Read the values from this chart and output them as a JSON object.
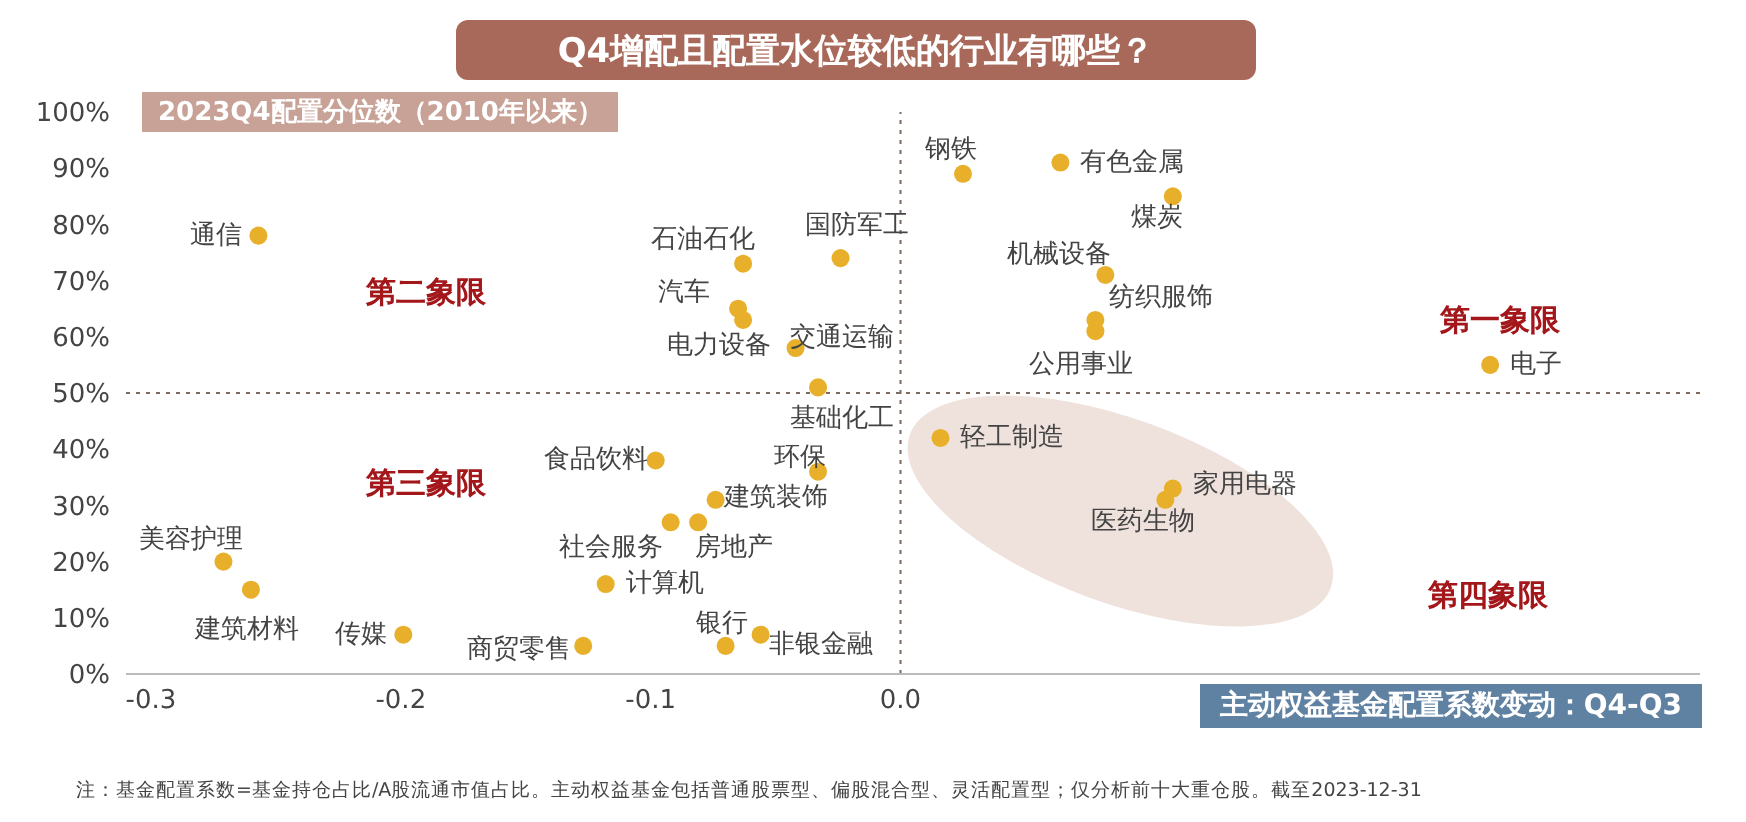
{
  "chart_data": {
    "type": "scatter",
    "title": "Q4增配且配置水位较低的行业有哪些？",
    "ylabel": "2023Q4配置分位数（2010年以来）",
    "xlabel": "主动权益基金配置系数变动：Q4-Q3",
    "x": [
      -0.257,
      -0.063,
      -0.024,
      -0.065,
      -0.063,
      -0.042,
      -0.033,
      0.025,
      0.064,
      0.109,
      0.082,
      0.078,
      0.078,
      0.236,
      0.016,
      0.109,
      0.106,
      -0.098,
      -0.033,
      -0.074,
      -0.092,
      -0.081,
      -0.118,
      -0.271,
      -0.26,
      -0.199,
      -0.127,
      -0.07,
      -0.056
    ],
    "series": [
      {
        "color": "#e8b02a",
        "values": [
          78,
          73,
          74,
          65,
          63,
          58,
          51,
          89,
          91,
          85,
          71,
          63,
          61,
          55,
          42,
          33,
          31,
          38,
          36,
          31,
          27,
          27,
          16,
          20,
          15,
          7,
          5,
          5,
          7
        ]
      }
    ],
    "xlim": [
      -0.31,
      0.32
    ],
    "xticks": [
      -0.3,
      -0.2,
      -0.1,
      {
        "value": 0,
        "label": "0.0"
      }
    ],
    "ylim": [
      0,
      100
    ],
    "yticks": [
      {
        "value": 0,
        "label": "0%"
      },
      {
        "value": 10,
        "label": "10%"
      },
      {
        "value": 20,
        "label": "20%"
      },
      {
        "value": 30,
        "label": "30%"
      },
      {
        "value": 40,
        "label": "40%"
      },
      {
        "value": 50,
        "label": "50%"
      },
      {
        "value": 60,
        "label": "60%"
      },
      {
        "value": 70,
        "label": "70%"
      },
      {
        "value": 80,
        "label": "80%"
      },
      {
        "value": 90,
        "label": "90%"
      },
      {
        "value": 100,
        "label": "100%"
      }
    ],
    "grid": false,
    "legend": false,
    "marker": "circle",
    "ref_lines": [
      {
        "axis": "x",
        "value": 0,
        "color": "#7f6a60",
        "line_style": "dotted"
      },
      {
        "axis": "y",
        "value": 50,
        "color": "#7f6a60",
        "line_style": "dotted"
      }
    ],
    "annotations": [
      {
        "text": "通信",
        "x": -0.257,
        "y": 78
      },
      {
        "text": "石油石化",
        "x": -0.063,
        "y": 73
      },
      {
        "text": "国防军工",
        "x": -0.024,
        "y": 74
      },
      {
        "text": "汽车",
        "x": -0.065,
        "y": 65
      },
      {
        "text": "电力设备",
        "x": -0.063,
        "y": 63
      },
      {
        "text": "交通运输",
        "x": -0.042,
        "y": 58
      },
      {
        "text": "基础化工",
        "x": -0.033,
        "y": 51
      },
      {
        "text": "钢铁",
        "x": 0.025,
        "y": 89
      },
      {
        "text": "有色金属",
        "x": 0.064,
        "y": 91
      },
      {
        "text": "煤炭",
        "x": 0.109,
        "y": 85
      },
      {
        "text": "机械设备",
        "x": 0.082,
        "y": 71
      },
      {
        "text": "纺织服饰",
        "x": 0.078,
        "y": 63
      },
      {
        "text": "公用事业",
        "x": 0.078,
        "y": 61
      },
      {
        "text": "电子",
        "x": 0.236,
        "y": 55
      },
      {
        "text": "轻工制造",
        "x": 0.016,
        "y": 42
      },
      {
        "text": "家用电器",
        "x": 0.109,
        "y": 33
      },
      {
        "text": "医药生物",
        "x": 0.106,
        "y": 31
      },
      {
        "text": "食品饮料",
        "x": -0.098,
        "y": 38
      },
      {
        "text": "环保",
        "x": -0.033,
        "y": 36
      },
      {
        "text": "建筑装饰",
        "x": -0.074,
        "y": 31
      },
      {
        "text": "社会服务",
        "x": -0.092,
        "y": 27
      },
      {
        "text": "房地产",
        "x": -0.081,
        "y": 27
      },
      {
        "text": "计算机",
        "x": -0.118,
        "y": 16
      },
      {
        "text": "美容护理",
        "x": -0.271,
        "y": 20
      },
      {
        "text": "建筑材料",
        "x": -0.26,
        "y": 15
      },
      {
        "text": "传媒",
        "x": -0.199,
        "y": 7
      },
      {
        "text": "商贸零售",
        "x": -0.127,
        "y": 5
      },
      {
        "text": "银行",
        "x": -0.07,
        "y": 5
      },
      {
        "text": "非银金融",
        "x": -0.056,
        "y": 7
      },
      "第二象限",
      "第一象限",
      "第三象限",
      "第四象限",
      "注：基金配置系数=基金持仓占比/A股流通市值占比。主动权益基金包括普通股票型、偏股混合型、灵活配置型；仅分析前十大重仓股。截至2023-12-31"
    ]
  }
}
